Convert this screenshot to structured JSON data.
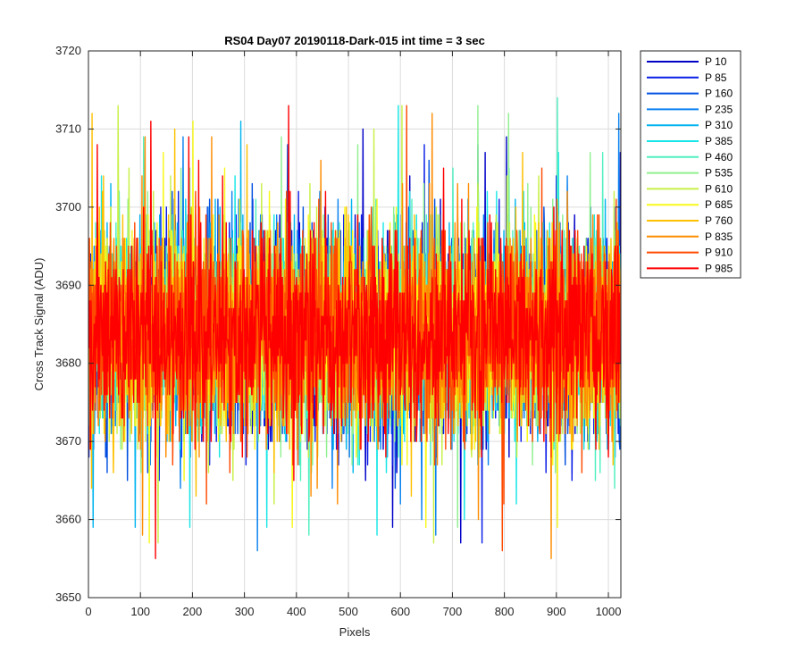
{
  "chart_data": {
    "type": "line",
    "title": "RS04 Day07 20190118-Dark-015 int time = 3 sec",
    "xlabel": "Pixels",
    "ylabel": "Cross Track Signal (ADU)",
    "xlim": [
      0,
      1024
    ],
    "ylim": [
      3650,
      3720
    ],
    "xticks": [
      0,
      100,
      200,
      300,
      400,
      500,
      600,
      700,
      800,
      900,
      1000
    ],
    "yticks": [
      3650,
      3660,
      3670,
      3680,
      3690,
      3700,
      3710,
      3720
    ],
    "grid": true,
    "legend_position": "outside-top-right",
    "noise": {
      "mean": 3684,
      "typical_range": [
        3665,
        3703
      ],
      "extreme_range": [
        3653,
        3718
      ]
    },
    "series": [
      {
        "name": "P 10",
        "color": "#0000c8"
      },
      {
        "name": "P 85",
        "color": "#0a1ee6"
      },
      {
        "name": "P 160",
        "color": "#0050e0"
      },
      {
        "name": "P 235",
        "color": "#0a82f0"
      },
      {
        "name": "P 310",
        "color": "#00b4f0"
      },
      {
        "name": "P 385",
        "color": "#18e6e6"
      },
      {
        "name": "P 460",
        "color": "#50f0c0"
      },
      {
        "name": "P 535",
        "color": "#90f090"
      },
      {
        "name": "P 610",
        "color": "#c8f046"
      },
      {
        "name": "P 685",
        "color": "#f8f81a"
      },
      {
        "name": "P 760",
        "color": "#ffc000"
      },
      {
        "name": "P 835",
        "color": "#ff8c00"
      },
      {
        "name": "P 910",
        "color": "#ff4a00"
      },
      {
        "name": "P 985",
        "color": "#ff0000"
      }
    ]
  }
}
